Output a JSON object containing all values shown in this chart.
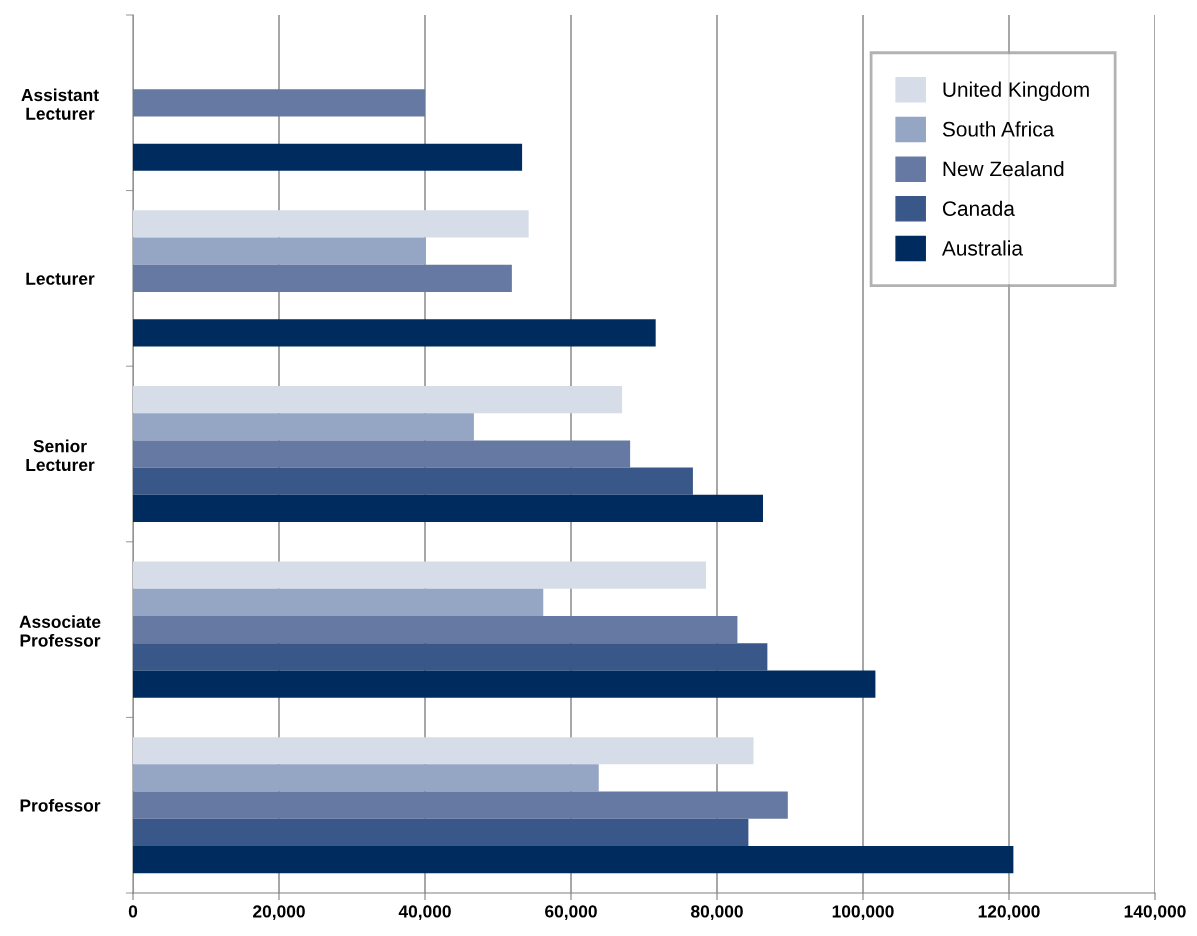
{
  "chart_data": {
    "type": "bar",
    "orientation": "horizontal",
    "categories": [
      "Assistant Lecturer",
      "Lecturer",
      "Senior Lecturer",
      "Associate Professor",
      "Professor"
    ],
    "series": [
      {
        "name": "United Kingdom",
        "color": "#d6dce8",
        "values": [
          null,
          54200,
          67000,
          78500,
          85000
        ]
      },
      {
        "name": "South Africa",
        "color": "#95a5c4",
        "values": [
          null,
          40000,
          46700,
          56200,
          63800
        ]
      },
      {
        "name": "New Zealand",
        "color": "#6679a3",
        "values": [
          40000,
          51900,
          68100,
          82800,
          89700
        ]
      },
      {
        "name": "Canada",
        "color": "#3a5789",
        "values": [
          null,
          null,
          76700,
          86900,
          84300
        ]
      },
      {
        "name": "Australia",
        "color": "#002b5e",
        "values": [
          53300,
          71600,
          86300,
          101700,
          120600
        ]
      }
    ],
    "xlim": [
      0,
      140000
    ],
    "xticks": [
      {
        "value": 0,
        "label": "0"
      },
      {
        "value": 20000,
        "label": "20,000"
      },
      {
        "value": 40000,
        "label": "40,000"
      },
      {
        "value": 60000,
        "label": "60,000"
      },
      {
        "value": 80000,
        "label": "80,000"
      },
      {
        "value": 100000,
        "label": "100,000"
      },
      {
        "value": 120000,
        "label": "120,000"
      },
      {
        "value": 140000,
        "label": "140,000"
      }
    ],
    "grid": "x",
    "legend": "top right"
  }
}
